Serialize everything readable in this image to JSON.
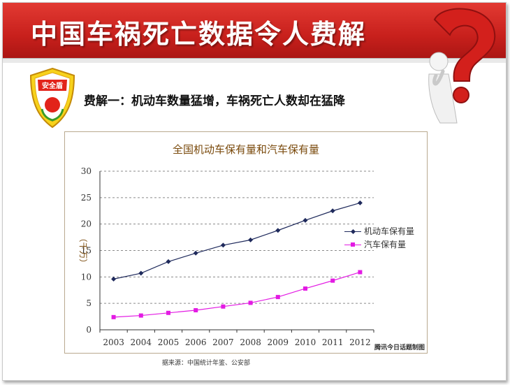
{
  "slide": {
    "title": "中国车祸死亡数据令人费解",
    "subtitle": "费解一：机动车数量猛增，车祸死亡人数却在猛降",
    "badge_text": "安全盾",
    "source": "据来源：中国统计年鉴、公安部",
    "watermark": "腾讯今日话题制图"
  },
  "colors": {
    "title_red": "#c8201c",
    "series_motor": "#1f2a5c",
    "series_car": "#e31be3"
  },
  "icons": {
    "badge": "shield-badge-icon",
    "question_figure": "question-mark-figure-icon"
  },
  "chart_data": {
    "type": "line",
    "title": "全国机动车保有量和汽车保有量",
    "ylabel": "（千万）",
    "xlabel": "",
    "x": [
      "2003",
      "2004",
      "2005",
      "2006",
      "2007",
      "2008",
      "2009",
      "2010",
      "2011",
      "2012"
    ],
    "ylim": [
      0,
      30
    ],
    "yticks": [
      "0",
      "5",
      "10",
      "15",
      "20",
      "25",
      "30"
    ],
    "grid": true,
    "legend_position": "right",
    "series": [
      {
        "name": "机动车保有量",
        "values": [
          9.6,
          10.7,
          12.9,
          14.5,
          16.0,
          17.0,
          18.8,
          20.7,
          22.5,
          24.0
        ]
      },
      {
        "name": "汽车保有量",
        "values": [
          2.4,
          2.7,
          3.2,
          3.7,
          4.4,
          5.1,
          6.2,
          7.8,
          9.3,
          10.9
        ]
      }
    ]
  }
}
